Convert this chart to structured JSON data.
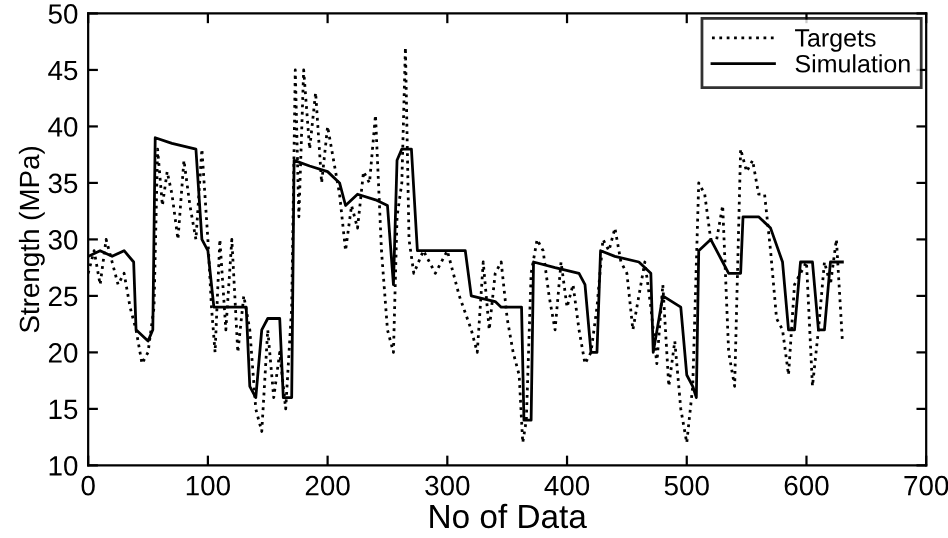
{
  "chart_data": {
    "type": "line",
    "xlabel": "No of Data",
    "ylabel": "Strength (MPa)",
    "xlim": [
      0,
      700
    ],
    "ylim": [
      10,
      50
    ],
    "xticks": [
      0,
      100,
      200,
      300,
      400,
      500,
      600,
      700
    ],
    "yticks": [
      10,
      15,
      20,
      25,
      30,
      35,
      40,
      45,
      50
    ],
    "grid": false,
    "legend": "top right",
    "series": [
      {
        "name": "Targets",
        "color": "#000000",
        "line_style": "dotted",
        "x": [
          0,
          5,
          10,
          15,
          20,
          25,
          30,
          35,
          40,
          45,
          50,
          55,
          58,
          62,
          66,
          70,
          75,
          80,
          85,
          90,
          95,
          100,
          103,
          106,
          110,
          115,
          120,
          125,
          130,
          135,
          140,
          145,
          150,
          155,
          160,
          165,
          170,
          173,
          176,
          180,
          185,
          190,
          195,
          200,
          210,
          215,
          220,
          225,
          230,
          235,
          240,
          245,
          250,
          255,
          258,
          262,
          265,
          268,
          272,
          280,
          290,
          300,
          310,
          320,
          325,
          330,
          335,
          340,
          345,
          350,
          355,
          360,
          363,
          366,
          370,
          375,
          380,
          385,
          390,
          395,
          400,
          405,
          410,
          415,
          420,
          425,
          430,
          435,
          440,
          445,
          450,
          455,
          460,
          465,
          470,
          475,
          480,
          485,
          490,
          495,
          500,
          505,
          510,
          515,
          520,
          525,
          530,
          535,
          540,
          545,
          550,
          555,
          560,
          565,
          570,
          575,
          580,
          585,
          590,
          595,
          600,
          605,
          610,
          615,
          620,
          625,
          630
        ],
        "values": [
          27,
          29,
          26,
          30,
          28,
          26,
          27,
          24,
          22,
          19,
          20,
          24,
          38,
          33,
          36,
          34,
          30,
          37,
          33,
          30,
          38,
          30,
          24,
          20,
          30,
          22,
          30,
          20,
          25,
          22,
          15,
          13,
          22,
          16,
          20,
          15,
          24,
          45,
          32,
          45,
          38,
          43,
          35,
          40,
          34,
          29,
          33,
          31,
          36,
          35,
          41,
          29,
          22,
          20,
          32,
          35,
          47,
          30,
          27,
          29,
          27,
          29,
          25,
          22,
          20,
          28,
          22,
          27,
          28,
          23,
          20,
          18,
          12,
          14,
          27,
          30,
          29,
          25,
          22,
          28,
          24,
          26,
          22,
          19,
          20,
          24,
          30,
          29,
          31,
          28,
          27,
          22,
          25,
          28,
          24,
          19,
          26,
          17,
          21,
          15,
          12,
          17,
          35,
          34,
          30,
          30,
          33,
          20,
          17,
          38,
          36,
          37,
          34,
          34,
          29,
          23,
          22,
          18,
          26,
          27,
          28,
          17,
          22,
          28,
          26,
          30,
          21
        ]
      },
      {
        "name": "Simulation",
        "color": "#000000",
        "line_style": "solid",
        "x": [
          0,
          10,
          20,
          30,
          38,
          40,
          50,
          54,
          56,
          70,
          90,
          95,
          100,
          105,
          120,
          132,
          135,
          140,
          145,
          150,
          160,
          163,
          170,
          172,
          185,
          200,
          210,
          215,
          225,
          240,
          250,
          255,
          258,
          262,
          270,
          275,
          300,
          315,
          320,
          340,
          345,
          362,
          364,
          370,
          372,
          390,
          410,
          415,
          420,
          425,
          428,
          440,
          460,
          470,
          472,
          480,
          495,
          500,
          505,
          508,
          510,
          520,
          530,
          535,
          545,
          547,
          560,
          570,
          580,
          585,
          590,
          595,
          605,
          610,
          615,
          620,
          630
        ],
        "values": [
          28.5,
          29,
          28.5,
          29,
          28,
          22,
          21,
          22,
          39,
          38.5,
          38,
          30,
          29,
          24,
          24,
          24,
          17,
          16,
          22,
          23,
          23,
          16,
          16,
          37,
          36.5,
          36,
          35,
          33,
          34,
          33.5,
          33,
          26,
          37,
          38,
          38,
          29,
          29,
          29,
          25,
          24.5,
          24,
          24,
          14,
          14,
          28,
          27.5,
          27,
          26,
          20,
          20,
          29,
          28.5,
          28,
          27,
          20,
          25,
          24,
          18,
          17,
          16,
          29,
          30,
          28,
          27,
          27,
          32,
          32,
          31,
          28,
          22,
          22,
          28,
          28,
          22,
          22,
          28,
          28
        ]
      }
    ]
  }
}
